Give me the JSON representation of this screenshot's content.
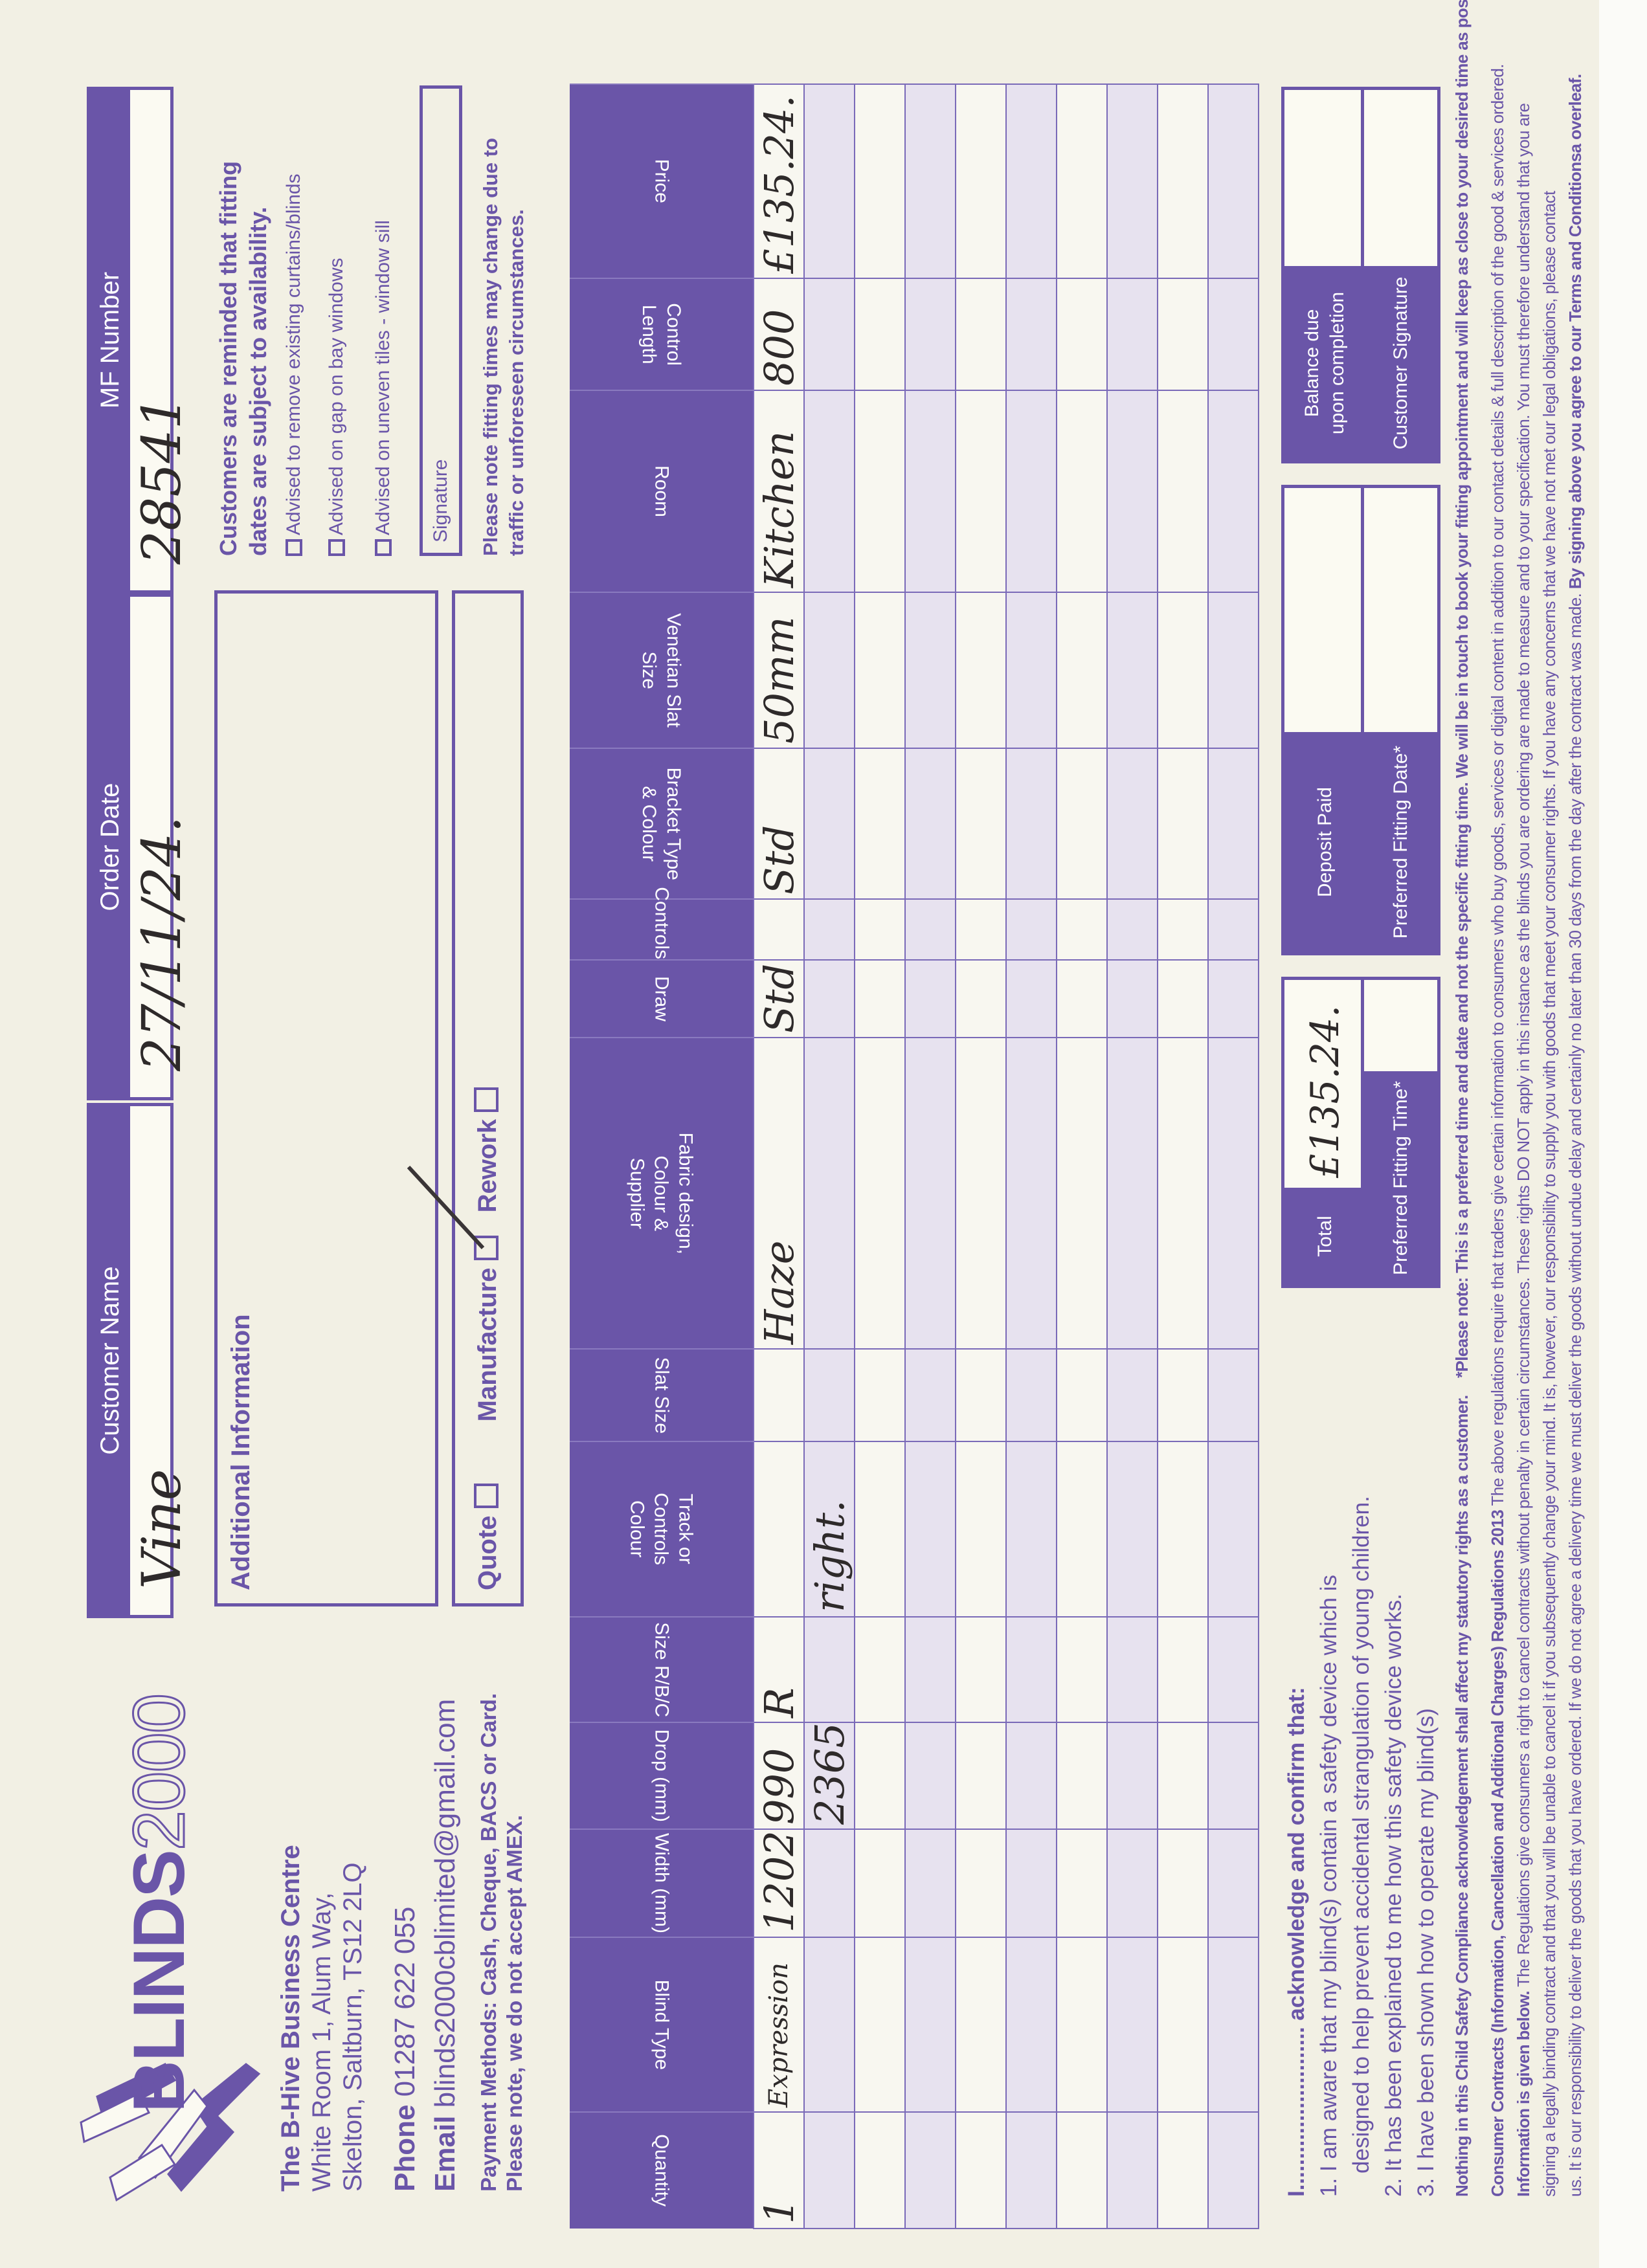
{
  "brand": {
    "logo_text_bold": "BLINDS",
    "logo_text_outline": "2000",
    "accent_color": "#6a55a8"
  },
  "company": {
    "name": "The B-Hive Business Centre",
    "address_line1": "White Room 1, Alum Way,",
    "address_line2": "Skelton, Saltburn, TS12 2LQ",
    "phone_label": "Phone",
    "phone": "01287 622 055",
    "email_label": "Email",
    "email": "blinds2000cblimited@gmail.com",
    "payment_methods": "Payment Methods: Cash, Cheque, BACS or Card.",
    "payment_note": "Please note, we do not accept AMEX."
  },
  "header": {
    "customer_name": {
      "label": "Customer Name",
      "value": "Vine"
    },
    "order_date": {
      "label": "Order Date",
      "value": "27/11/24."
    },
    "mf_number": {
      "label": "MF Number",
      "value": "28541"
    }
  },
  "additional_info": {
    "title": "Additional Information"
  },
  "order_type": {
    "quote": {
      "label": "Quote",
      "checked": false
    },
    "manufacture": {
      "label": "Manufacture",
      "checked": true
    },
    "rework": {
      "label": "Rework",
      "checked": false
    }
  },
  "reminder": {
    "heading_line1": "Customers are reminded that fitting",
    "heading_line2": "dates are subject to availability.",
    "checks": [
      "Advised to remove existing curtains/blinds",
      "Advised on gap on bay windows",
      "Advised on uneven tiles - window sill"
    ],
    "signature_label": "Signature",
    "note_line1": "Please note fitting times may change due to",
    "note_line2": "traffic or unforeseen circumstances."
  },
  "table": {
    "columns": [
      "Quantity",
      "Blind Type",
      "Width (mm)",
      "Drop (mm)",
      "Size R/B/C",
      "Track or\nControls\nColour",
      "Slat Size",
      "Fabric design,\nColour &\nSupplier",
      "Draw",
      "Controls",
      "Bracket Type\n& Colour",
      "Venetian Slat\nSize",
      "Room",
      "Control\nLength",
      "Price"
    ],
    "rows": [
      [
        "1",
        "Expression",
        "1202",
        "990",
        "R",
        "",
        "",
        "Haze",
        "Std",
        "",
        "Std",
        "50mm",
        "Kitchen",
        "800",
        "£135.24."
      ],
      [
        "",
        "",
        "",
        "2365",
        "",
        "right.",
        "",
        "",
        "",
        "",
        "",
        "",
        "",
        "",
        ""
      ],
      [
        "",
        "",
        "",
        "",
        "",
        "",
        "",
        "",
        "",
        "",
        "",
        "",
        "",
        "",
        ""
      ],
      [
        "",
        "",
        "",
        "",
        "",
        "",
        "",
        "",
        "",
        "",
        "",
        "",
        "",
        "",
        ""
      ],
      [
        "",
        "",
        "",
        "",
        "",
        "",
        "",
        "",
        "",
        "",
        "",
        "",
        "",
        "",
        ""
      ],
      [
        "",
        "",
        "",
        "",
        "",
        "",
        "",
        "",
        "",
        "",
        "",
        "",
        "",
        "",
        ""
      ],
      [
        "",
        "",
        "",
        "",
        "",
        "",
        "",
        "",
        "",
        "",
        "",
        "",
        "",
        "",
        ""
      ],
      [
        "",
        "",
        "",
        "",
        "",
        "",
        "",
        "",
        "",
        "",
        "",
        "",
        "",
        "",
        ""
      ],
      [
        "",
        "",
        "",
        "",
        "",
        "",
        "",
        "",
        "",
        "",
        "",
        "",
        "",
        "",
        ""
      ],
      [
        "",
        "",
        "",
        "",
        "",
        "",
        "",
        "",
        "",
        "",
        "",
        "",
        "",
        "",
        ""
      ]
    ]
  },
  "acknowledgement": {
    "intro": "I.......................... acknowledge and confirm that:",
    "item1a": "1. I am aware that my blind(s) contain a safety device which is",
    "item1b": "designed to help prevent accidental strangulation of young children.",
    "item2": "2. It has been explained to me how this safety device works.",
    "item3": "3. I have been shown how to operate my blind(s)"
  },
  "summary": {
    "total": {
      "label": "Total",
      "value": "£135.24."
    },
    "deposit": {
      "label": "Deposit Paid",
      "value": ""
    },
    "balance": {
      "label": "Balance due upon completion",
      "value": ""
    },
    "fit_time": {
      "label": "Preferred Fitting Time*",
      "value": ""
    },
    "fit_date": {
      "label": "Preferred Fitting Date*",
      "value": ""
    },
    "signature": {
      "label": "Customer Signature",
      "value": ""
    }
  },
  "legal": {
    "statutory": "Nothing in this Child Safety Compliance acknowledgement shall affect my statutory rights as a customer.",
    "please_note": "*Please note: This is a preferred time and date and not the specific fitting time. We will be in touch to book your fitting appointment and will keep as close to your desired time as possible.",
    "cc_title": "Consumer Contracts (Information, Cancellation and Additional Charges) Regulations 2013",
    "cc1": " The above regulations require that traders give certain information to consumers who buy goods, services or digital content in addition to our contact details & full description of the good & services ordered.",
    "cc2_bold": "Information is given below.",
    "cc2": " The Regulations give consumers a right to cancel contracts without penalty in certain circumstances. These rights DO NOT apply in this instance as the blinds you are ordering are made to measure and to your specification. You must therefore understand that you are",
    "cc3": "signing a legally binding contract and that you will be unable to cancel it if you subsequently change your mind. It is, however, our responsibility to supply you with goods that meet your consumer rights. If you have any concerns that we have not met our legal obligations, please contact",
    "cc4": "us. It is our responsibility to deliver the goods that you have ordered. If we do not agree a delivery time we must deliver the goods without undue delay and certainly no later than 30 days from the day after the contract was made. ",
    "cc4_bold": "By signing above you agree to our Terms and Conditionsa overleaf."
  }
}
